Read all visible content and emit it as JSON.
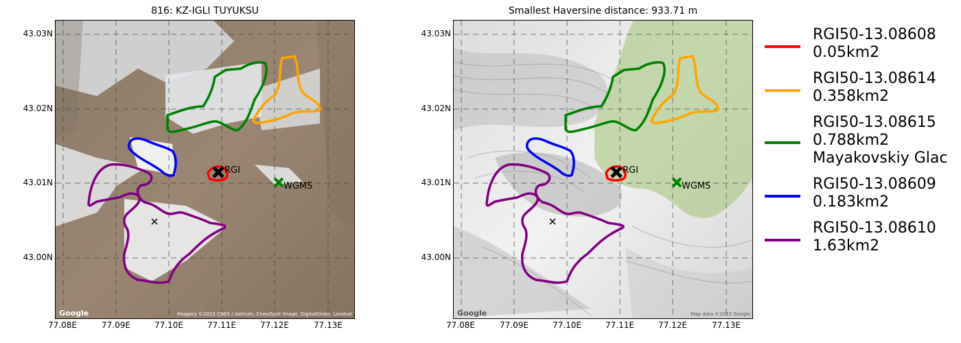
{
  "left_panel": {
    "title": "816: KZ-IGLI TUYUKSU",
    "attribution": "Imagery ©2015 CNES / Astrium, Cnes/Spot Image, DigitalGlobe, Landsat",
    "basemap": "satellite"
  },
  "right_panel": {
    "title": "Smallest Haversine distance: 933.71 m",
    "attribution": "Map data ©2015 Google",
    "basemap": "terrain"
  },
  "google_badge": "Google",
  "y_ticks": [
    "43.03N",
    "43.02N",
    "43.01N",
    "43.00N"
  ],
  "x_ticks": [
    "77.08E",
    "77.09E",
    "77.10E",
    "77.11E",
    "77.12E",
    "77.13E"
  ],
  "markers": {
    "rgi_label": "RGI",
    "wgms_label": "WGMS",
    "rgi_color": "#000000",
    "wgms_color": "#008000"
  },
  "legend": [
    {
      "lines": [
        "RGI50-13.08608",
        "0.05km2"
      ],
      "color": "#ff0000"
    },
    {
      "lines": [
        "RGI50-13.08614",
        "0.358km2"
      ],
      "color": "#ffa500"
    },
    {
      "lines": [
        "RGI50-13.08615",
        "0.788km2",
        "Mayakovskiy Glac"
      ],
      "color": "#008000"
    },
    {
      "lines": [
        "RGI50-13.08609",
        "0.183km2"
      ],
      "color": "#0000ff"
    },
    {
      "lines": [
        "RGI50-13.08610",
        "1.63km2"
      ],
      "color": "#800080"
    }
  ]
}
